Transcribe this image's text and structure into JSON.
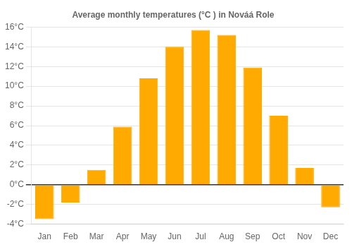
{
  "chart_data": {
    "type": "bar",
    "title": "Average monthly temperatures (°C ) in Nováá Role",
    "categories": [
      "Jan",
      "Feb",
      "Mar",
      "Apr",
      "May",
      "Jun",
      "Jul",
      "Aug",
      "Sep",
      "Oct",
      "Nov",
      "Dec"
    ],
    "values": [
      -3.5,
      -1.8,
      1.5,
      5.9,
      10.8,
      14.0,
      15.7,
      15.2,
      11.9,
      7.0,
      1.7,
      -2.3
    ],
    "color": "#FFAA00",
    "ylim": [
      -4,
      16
    ],
    "yticks": [
      {
        "value": -4,
        "label": "-4°C"
      },
      {
        "value": -2,
        "label": "-2°C"
      },
      {
        "value": 0,
        "label": "0°C"
      },
      {
        "value": 2,
        "label": "2°C"
      },
      {
        "value": 4,
        "label": "4°C"
      },
      {
        "value": 6,
        "label": "6°C"
      },
      {
        "value": 8,
        "label": "8°C"
      },
      {
        "value": 10,
        "label": "10°C"
      },
      {
        "value": 12,
        "label": "12°C"
      },
      {
        "value": 14,
        "label": "14°C"
      },
      {
        "value": 16,
        "label": "16°C"
      }
    ],
    "grid": true
  }
}
